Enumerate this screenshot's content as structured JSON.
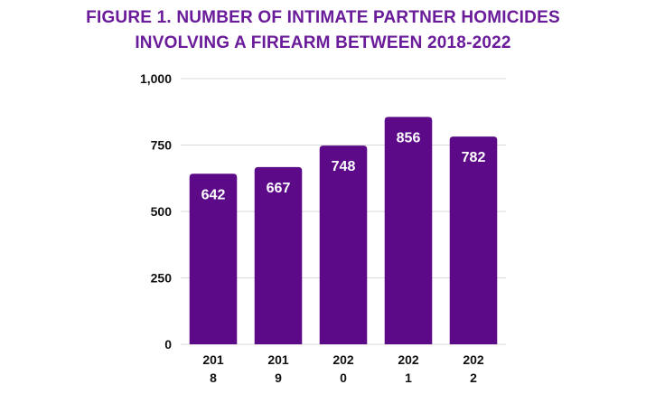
{
  "header": {
    "title_line1": "FIGURE 1. NUMBER OF INTIMATE PARTNER HOMICIDES",
    "title_line2": "INVOLVING A FIREARM BETWEEN 2018-2022"
  },
  "chart_data": {
    "type": "bar",
    "title": "FIGURE 1. NUMBER OF INTIMATE PARTNER HOMICIDES INVOLVING A FIREARM BETWEEN 2018-2022",
    "categories": [
      "2018",
      "2019",
      "2020",
      "2021",
      "2022"
    ],
    "category_labels": [
      [
        "201",
        "8"
      ],
      [
        "201",
        "9"
      ],
      [
        "202",
        "0"
      ],
      [
        "202",
        "1"
      ],
      [
        "202",
        "2"
      ]
    ],
    "values": [
      642,
      667,
      748,
      856,
      782
    ],
    "value_labels": [
      "642",
      "667",
      "748",
      "856",
      "782"
    ],
    "ylim": [
      0,
      1000
    ],
    "yticks": [
      0,
      250,
      500,
      750,
      1000
    ],
    "ytick_labels": [
      "0",
      "250",
      "500",
      "750",
      "1,000"
    ],
    "grid": true,
    "bar_color": "#5c0a87"
  }
}
